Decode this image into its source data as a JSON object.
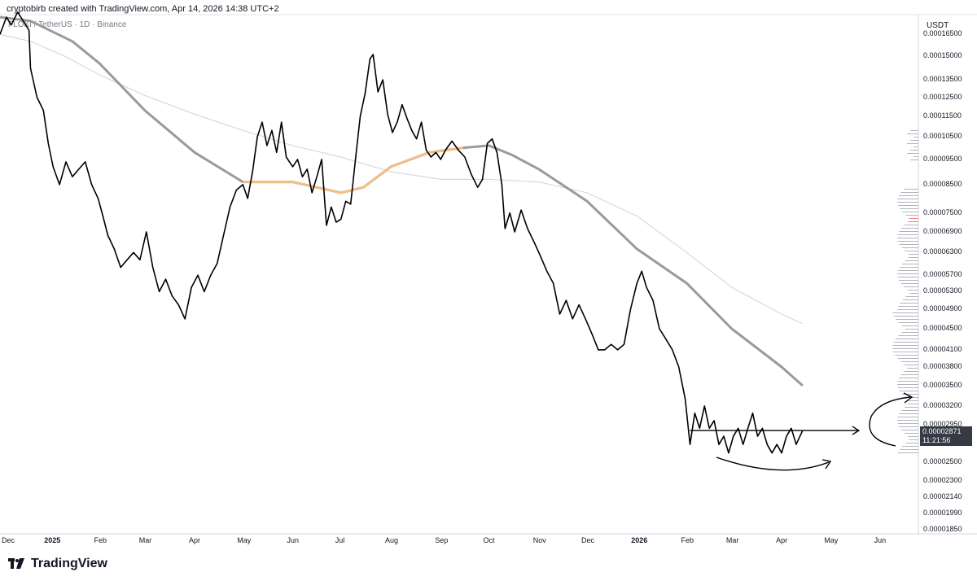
{
  "header": {
    "title": "cryptobirb created with TradingView.com, Apr 14, 2026 14:38 UTC+2",
    "symbol": "FLOKI / TetherUS · 1D · Binance"
  },
  "footer": {
    "brand": "TradingView"
  },
  "chart_data": {
    "type": "line",
    "title": "",
    "currency": "USDT",
    "x_axis": {
      "tick_labels": [
        "Dec",
        "2025",
        "Feb",
        "Mar",
        "Apr",
        "May",
        "Jun",
        "Jul",
        "Aug",
        "Sep",
        "Oct",
        "Nov",
        "Dec",
        "2026",
        "Feb",
        "Mar",
        "Apr",
        "May",
        "Jun"
      ],
      "range": [
        "2024-12-01",
        "2026-06-25"
      ]
    },
    "y_axis": {
      "label": "USDT",
      "scale": "log",
      "range": [
        1.82e-05,
        0.00018
      ],
      "tick_labels": [
        "0.00016500",
        "0.00015000",
        "0.00013500",
        "0.00012500",
        "0.00011500",
        "0.00010500",
        "0.00009500",
        "0.00008500",
        "0.00007500",
        "0.00006900",
        "0.00006300",
        "0.00005700",
        "0.00005300",
        "0.00004900",
        "0.00004500",
        "0.00004100",
        "0.00003800",
        "0.00003500",
        "0.00003200",
        "0.00002950",
        "0.00002700",
        "0.00002500",
        "0.00002300",
        "0.00002140",
        "0.00001990",
        "0.00001850"
      ]
    },
    "last_price": {
      "value": "0.00002871",
      "countdown": "11:21:56"
    },
    "series": [
      {
        "type": "price",
        "color": "#000000",
        "points": [
          [
            "2024-12-01",
            0.000165
          ],
          [
            "2024-12-05",
            0.000178
          ],
          [
            "2024-12-08",
            0.000172
          ],
          [
            "2024-12-12",
            0.000182
          ],
          [
            "2024-12-16",
            0.000174
          ],
          [
            "2024-12-19",
            0.000168
          ],
          [
            "2024-12-20",
            0.000142
          ],
          [
            "2024-12-24",
            0.000125
          ],
          [
            "2024-12-28",
            0.000118
          ],
          [
            "2024-12-31",
            0.000102
          ],
          [
            "2025-01-03",
            9.2e-05
          ],
          [
            "2025-01-07",
            8.5e-05
          ],
          [
            "2025-01-11",
            9.4e-05
          ],
          [
            "2025-01-15",
            8.8e-05
          ],
          [
            "2025-01-19",
            9.1e-05
          ],
          [
            "2025-01-23",
            9.4e-05
          ],
          [
            "2025-01-27",
            8.5e-05
          ],
          [
            "2025-01-31",
            8e-05
          ],
          [
            "2025-02-03",
            7.4e-05
          ],
          [
            "2025-02-06",
            6.8e-05
          ],
          [
            "2025-02-10",
            6.4e-05
          ],
          [
            "2025-02-14",
            5.9e-05
          ],
          [
            "2025-02-18",
            6.1e-05
          ],
          [
            "2025-02-22",
            6.3e-05
          ],
          [
            "2025-02-26",
            6.1e-05
          ],
          [
            "2025-03-02",
            6.9e-05
          ],
          [
            "2025-03-06",
            5.9e-05
          ],
          [
            "2025-03-10",
            5.3e-05
          ],
          [
            "2025-03-14",
            5.6e-05
          ],
          [
            "2025-03-18",
            5.2e-05
          ],
          [
            "2025-03-22",
            5e-05
          ],
          [
            "2025-03-26",
            4.7e-05
          ],
          [
            "2025-03-30",
            5.4e-05
          ],
          [
            "2025-04-03",
            5.7e-05
          ],
          [
            "2025-04-07",
            5.3e-05
          ],
          [
            "2025-04-11",
            5.7e-05
          ],
          [
            "2025-04-15",
            6e-05
          ],
          [
            "2025-04-19",
            6.8e-05
          ],
          [
            "2025-04-23",
            7.7e-05
          ],
          [
            "2025-04-27",
            8.3e-05
          ],
          [
            "2025-05-01",
            8.5e-05
          ],
          [
            "2025-05-04",
            8e-05
          ],
          [
            "2025-05-07",
            9e-05
          ],
          [
            "2025-05-10",
            0.000105
          ],
          [
            "2025-05-13",
            0.000112
          ],
          [
            "2025-05-16",
            0.000101
          ],
          [
            "2025-05-19",
            0.000108
          ],
          [
            "2025-05-22",
            9.8e-05
          ],
          [
            "2025-05-25",
            0.000112
          ],
          [
            "2025-05-28",
            9.6e-05
          ],
          [
            "2025-06-01",
            9.2e-05
          ],
          [
            "2025-06-04",
            9.5e-05
          ],
          [
            "2025-06-07",
            8.8e-05
          ],
          [
            "2025-06-10",
            9.1e-05
          ],
          [
            "2025-06-13",
            8.2e-05
          ],
          [
            "2025-06-16",
            8.8e-05
          ],
          [
            "2025-06-19",
            9.5e-05
          ],
          [
            "2025-06-22",
            7.1e-05
          ],
          [
            "2025-06-25",
            7.7e-05
          ],
          [
            "2025-06-28",
            7.2e-05
          ],
          [
            "2025-07-01",
            7.3e-05
          ],
          [
            "2025-07-04",
            7.9e-05
          ],
          [
            "2025-07-07",
            7.8e-05
          ],
          [
            "2025-07-10",
            9.5e-05
          ],
          [
            "2025-07-13",
            0.000115
          ],
          [
            "2025-07-16",
            0.000127
          ],
          [
            "2025-07-19",
            0.000148
          ],
          [
            "2025-07-21",
            0.000151
          ],
          [
            "2025-07-24",
            0.000128
          ],
          [
            "2025-07-27",
            0.000135
          ],
          [
            "2025-07-30",
            0.000116
          ],
          [
            "2025-08-02",
            0.000107
          ],
          [
            "2025-08-05",
            0.000112
          ],
          [
            "2025-08-08",
            0.000121
          ],
          [
            "2025-08-11",
            0.000114
          ],
          [
            "2025-08-14",
            0.000108
          ],
          [
            "2025-08-17",
            0.000104
          ],
          [
            "2025-08-20",
            0.000112
          ],
          [
            "2025-08-23",
            9.9e-05
          ],
          [
            "2025-08-26",
            9.6e-05
          ],
          [
            "2025-08-29",
            9.8e-05
          ],
          [
            "2025-09-01",
            9.5e-05
          ],
          [
            "2025-09-04",
            9.9e-05
          ],
          [
            "2025-09-08",
            0.000103
          ],
          [
            "2025-09-12",
            9.9e-05
          ],
          [
            "2025-09-16",
            9.6e-05
          ],
          [
            "2025-09-20",
            8.9e-05
          ],
          [
            "2025-09-24",
            8.4e-05
          ],
          [
            "2025-09-27",
            8.7e-05
          ],
          [
            "2025-09-30",
            0.000102
          ],
          [
            "2025-10-03",
            0.000104
          ],
          [
            "2025-10-06",
            9.8e-05
          ],
          [
            "2025-10-09",
            8.5e-05
          ],
          [
            "2025-10-11",
            7e-05
          ],
          [
            "2025-10-14",
            7.5e-05
          ],
          [
            "2025-10-17",
            6.9e-05
          ],
          [
            "2025-10-21",
            7.6e-05
          ],
          [
            "2025-10-25",
            7e-05
          ],
          [
            "2025-10-29",
            6.6e-05
          ],
          [
            "2025-11-02",
            6.2e-05
          ],
          [
            "2025-11-06",
            5.8e-05
          ],
          [
            "2025-11-10",
            5.5e-05
          ],
          [
            "2025-11-14",
            4.8e-05
          ],
          [
            "2025-11-18",
            5.1e-05
          ],
          [
            "2025-11-22",
            4.7e-05
          ],
          [
            "2025-11-26",
            5e-05
          ],
          [
            "2025-11-30",
            4.7e-05
          ],
          [
            "2025-12-04",
            4.4e-05
          ],
          [
            "2025-12-08",
            4.1e-05
          ],
          [
            "2025-12-12",
            4.1e-05
          ],
          [
            "2025-12-16",
            4.2e-05
          ],
          [
            "2025-12-20",
            4.1e-05
          ],
          [
            "2025-12-24",
            4.2e-05
          ],
          [
            "2025-12-28",
            4.9e-05
          ],
          [
            "2026-01-01",
            5.5e-05
          ],
          [
            "2026-01-04",
            5.8e-05
          ],
          [
            "2026-01-07",
            5.4e-05
          ],
          [
            "2026-01-11",
            5.1e-05
          ],
          [
            "2026-01-15",
            4.5e-05
          ],
          [
            "2026-01-19",
            4.3e-05
          ],
          [
            "2026-01-23",
            4.1e-05
          ],
          [
            "2026-01-27",
            3.8e-05
          ],
          [
            "2026-01-31",
            3.3e-05
          ],
          [
            "2026-02-03",
            2.7e-05
          ],
          [
            "2026-02-06",
            3.1e-05
          ],
          [
            "2026-02-09",
            2.9e-05
          ],
          [
            "2026-02-12",
            3.2e-05
          ],
          [
            "2026-02-15",
            2.9e-05
          ],
          [
            "2026-02-18",
            3e-05
          ],
          [
            "2026-02-21",
            2.7e-05
          ],
          [
            "2026-02-24",
            2.8e-05
          ],
          [
            "2026-02-27",
            2.6e-05
          ],
          [
            "2026-03-02",
            2.8e-05
          ],
          [
            "2026-03-05",
            2.9e-05
          ],
          [
            "2026-03-08",
            2.7e-05
          ],
          [
            "2026-03-11",
            2.9e-05
          ],
          [
            "2026-03-14",
            3.1e-05
          ],
          [
            "2026-03-17",
            2.8e-05
          ],
          [
            "2026-03-20",
            2.9e-05
          ],
          [
            "2026-03-23",
            2.7e-05
          ],
          [
            "2026-03-26",
            2.6e-05
          ],
          [
            "2026-03-29",
            2.7e-05
          ],
          [
            "2026-04-01",
            2.6e-05
          ],
          [
            "2026-04-04",
            2.8e-05
          ],
          [
            "2026-04-07",
            2.9e-05
          ],
          [
            "2026-04-10",
            2.7e-05
          ],
          [
            "2026-04-14",
            2.871e-05
          ]
        ]
      },
      {
        "type": "moving-average-long",
        "color": "#a0a0a0",
        "points": [
          [
            "2024-12-01",
            0.000165
          ],
          [
            "2024-12-20",
            0.00016
          ],
          [
            "2025-01-10",
            0.00015
          ],
          [
            "2025-02-01",
            0.000138
          ],
          [
            "2025-03-01",
            0.000126
          ],
          [
            "2025-04-01",
            0.000116
          ],
          [
            "2025-05-01",
            0.000108
          ],
          [
            "2025-06-01",
            0.000101
          ],
          [
            "2025-07-01",
            9.6e-05
          ],
          [
            "2025-08-01",
            9e-05
          ],
          [
            "2025-09-01",
            8.7e-05
          ],
          [
            "2025-10-01",
            8.7e-05
          ],
          [
            "2025-11-01",
            8.6e-05
          ],
          [
            "2025-12-01",
            8.2e-05
          ],
          [
            "2026-01-01",
            7.4e-05
          ],
          [
            "2026-02-01",
            6.3e-05
          ],
          [
            "2026-03-01",
            5.4e-05
          ],
          [
            "2026-04-01",
            4.8e-05
          ],
          [
            "2026-04-14",
            4.6e-05
          ]
        ]
      },
      {
        "type": "moving-average-short",
        "color": "#9a9a9a",
        "highlight_color": "#f2be83",
        "points": [
          [
            "2024-12-01",
            0.000178
          ],
          [
            "2024-12-20",
            0.000175
          ],
          [
            "2025-01-15",
            0.00016
          ],
          [
            "2025-02-01",
            0.000145
          ],
          [
            "2025-03-01",
            0.000118
          ],
          [
            "2025-04-01",
            9.8e-05
          ],
          [
            "2025-05-01",
            8.6e-05
          ],
          [
            "2025-06-01",
            8.6e-05
          ],
          [
            "2025-07-01",
            8.2e-05
          ],
          [
            "2025-07-15",
            8.4e-05
          ],
          [
            "2025-08-01",
            9.2e-05
          ],
          [
            "2025-08-25",
            9.8e-05
          ],
          [
            "2025-09-15",
            0.0001
          ],
          [
            "2025-10-01",
            0.000101
          ],
          [
            "2025-10-15",
            9.7e-05
          ],
          [
            "2025-11-01",
            9.1e-05
          ],
          [
            "2025-12-01",
            7.9e-05
          ],
          [
            "2026-01-01",
            6.4e-05
          ],
          [
            "2026-02-01",
            5.5e-05
          ],
          [
            "2026-03-01",
            4.5e-05
          ],
          [
            "2026-04-01",
            3.8e-05
          ],
          [
            "2026-04-14",
            3.5e-05
          ]
        ]
      }
    ],
    "annotations": {
      "horizontal_line": {
        "value": 2.871e-05,
        "from": "2026-02-03",
        "to": "2026-05-19"
      }
    }
  }
}
